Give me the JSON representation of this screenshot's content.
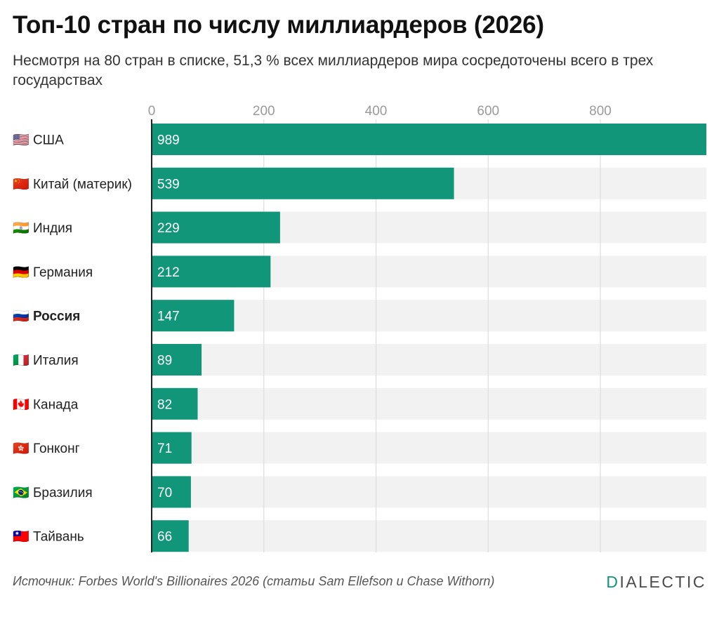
{
  "header": {
    "title": "Топ-10 стран по числу миллиардеров (2026)",
    "subtitle": "Несмотря на 80 стран в списке, 51,3 % всех миллиардеров мира сосредоточены всего в трех государствах"
  },
  "footer": {
    "source": "Источник: Forbes World's Billionaires 2026 (статьи Sam Ellefson и Chase Withorn)",
    "brand_accent": "D",
    "brand_rest": "IALECTIC"
  },
  "colors": {
    "bar": "#12967a",
    "track": "#f2f2f2",
    "axis": "#222222",
    "grid": "#dddddd",
    "tick_text": "#9a9a9a",
    "brand_accent": "#12967a"
  },
  "chart_data": {
    "type": "bar",
    "orientation": "horizontal",
    "categories": [
      {
        "label": "США",
        "flag": "🇺🇸",
        "bold": false
      },
      {
        "label": "Китай (материк)",
        "flag": "🇨🇳",
        "bold": false
      },
      {
        "label": "Индия",
        "flag": "🇮🇳",
        "bold": false
      },
      {
        "label": "Германия",
        "flag": "🇩🇪",
        "bold": false
      },
      {
        "label": "Россия",
        "flag": "🇷🇺",
        "bold": true
      },
      {
        "label": "Италия",
        "flag": "🇮🇹",
        "bold": false
      },
      {
        "label": "Канада",
        "flag": "🇨🇦",
        "bold": false
      },
      {
        "label": "Гонконг",
        "flag": "🇭🇰",
        "bold": false
      },
      {
        "label": "Бразилия",
        "flag": "🇧🇷",
        "bold": false
      },
      {
        "label": "Тайвань",
        "flag": "🇹🇼",
        "bold": false
      }
    ],
    "values": [
      989,
      539,
      229,
      212,
      147,
      89,
      82,
      71,
      70,
      66
    ],
    "value_labels": [
      "989",
      "539",
      "229",
      "212",
      "147",
      "89",
      "82",
      "71",
      "70",
      "66"
    ],
    "xlim": [
      0,
      989
    ],
    "xticks": [
      0,
      200,
      400,
      600,
      800
    ],
    "xtick_labels": [
      "0",
      "200",
      "400",
      "600",
      "800"
    ],
    "grid": true,
    "axis_position": "top"
  }
}
